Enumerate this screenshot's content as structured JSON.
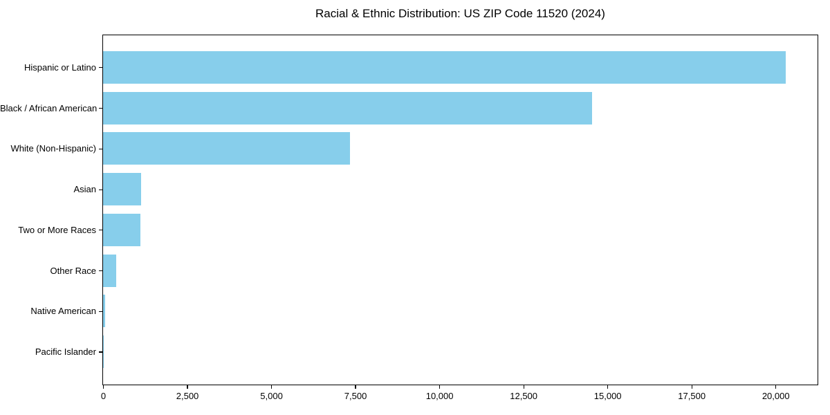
{
  "chart_data": {
    "type": "bar",
    "orientation": "horizontal",
    "title": "Racial & Ethnic Distribution: US ZIP Code 11520 (2024)",
    "categories": [
      "Hispanic or Latino",
      "Black / African American",
      "White (Non-Hispanic)",
      "Asian",
      "Two or More Races",
      "Other Race",
      "Native American",
      "Pacific Islander"
    ],
    "values": [
      20300,
      14550,
      7350,
      1130,
      1110,
      390,
      60,
      15
    ],
    "xlabel": "",
    "ylabel": "",
    "xlim": [
      0,
      21230
    ],
    "x_ticks": [
      {
        "value": 0,
        "label": "0"
      },
      {
        "value": 2500,
        "label": "2,500"
      },
      {
        "value": 5000,
        "label": "5,000"
      },
      {
        "value": 7500,
        "label": "7,500"
      },
      {
        "value": 10000,
        "label": "10,000"
      },
      {
        "value": 12500,
        "label": "12,500"
      },
      {
        "value": 15000,
        "label": "15,000"
      },
      {
        "value": 17500,
        "label": "17,500"
      },
      {
        "value": 20000,
        "label": "20,000"
      }
    ],
    "grid": false,
    "legend": null,
    "colors": {
      "bar": "#87CEEB",
      "axis": "#000000",
      "text": "#000000",
      "background": "#ffffff"
    }
  }
}
